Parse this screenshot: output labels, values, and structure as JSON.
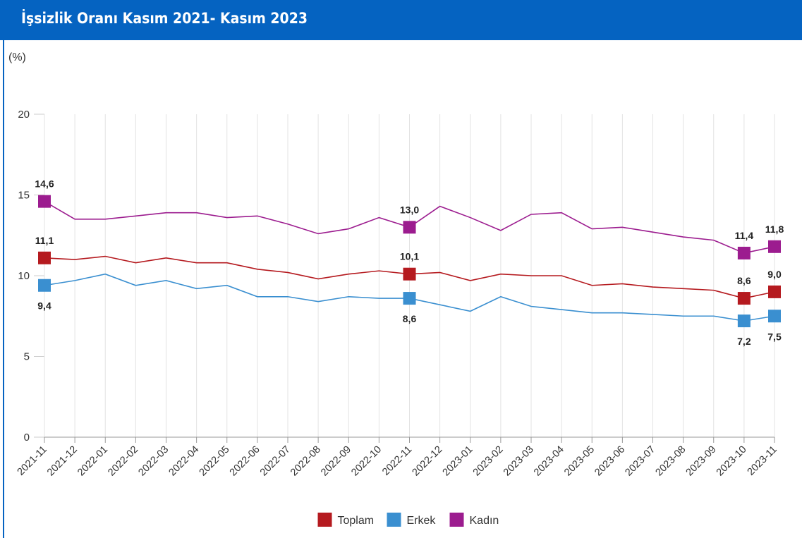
{
  "chart_data": {
    "type": "line",
    "title": "İşsizlik Oranı Kasım 2021- Kasım 2023",
    "y_label": "(%)",
    "categories": [
      "2021-11",
      "2021-12",
      "2022-01",
      "2022-02",
      "2022-03",
      "2022-04",
      "2022-05",
      "2022-06",
      "2022-07",
      "2022-08",
      "2022-09",
      "2022-10",
      "2022-11",
      "2022-12",
      "2023-01",
      "2023-02",
      "2023-03",
      "2023-04",
      "2023-05",
      "2023-06",
      "2023-07",
      "2023-08",
      "2023-09",
      "2023-10",
      "2023-11"
    ],
    "series": [
      {
        "name": "Toplam",
        "color": "#b51a1f",
        "values": [
          11.1,
          11.0,
          11.2,
          10.8,
          11.1,
          10.8,
          10.8,
          10.4,
          10.2,
          9.8,
          10.1,
          10.3,
          10.1,
          10.2,
          9.7,
          10.1,
          10.0,
          10.0,
          9.4,
          9.5,
          9.3,
          9.2,
          9.1,
          8.6,
          9.0
        ],
        "value_labels": [
          "11,1",
          null,
          null,
          null,
          null,
          null,
          null,
          null,
          null,
          null,
          null,
          null,
          "10,1",
          null,
          null,
          null,
          null,
          null,
          null,
          null,
          null,
          null,
          null,
          "8,6",
          "9,0"
        ]
      },
      {
        "name": "Erkek",
        "color": "#3a8fd0",
        "values": [
          9.4,
          9.7,
          10.1,
          9.4,
          9.7,
          9.2,
          9.4,
          8.7,
          8.7,
          8.4,
          8.7,
          8.6,
          8.6,
          8.2,
          7.8,
          8.7,
          8.1,
          7.9,
          7.7,
          7.7,
          7.6,
          7.5,
          7.5,
          7.2,
          7.5
        ],
        "value_labels": [
          "9,4",
          null,
          null,
          null,
          null,
          null,
          null,
          null,
          null,
          null,
          null,
          null,
          "8,6",
          null,
          null,
          null,
          null,
          null,
          null,
          null,
          null,
          null,
          null,
          "7,2",
          "7,5"
        ]
      },
      {
        "name": "Kadın",
        "color": "#9c1c8f",
        "values": [
          14.6,
          13.5,
          13.5,
          13.7,
          13.9,
          13.9,
          13.6,
          13.7,
          13.2,
          12.6,
          12.9,
          13.6,
          13.0,
          14.3,
          13.6,
          12.8,
          13.8,
          13.9,
          12.9,
          13.0,
          12.7,
          12.4,
          12.2,
          11.4,
          11.8
        ],
        "value_labels": [
          "14,6",
          null,
          null,
          null,
          null,
          null,
          null,
          null,
          null,
          null,
          null,
          null,
          "13,0",
          null,
          null,
          null,
          null,
          null,
          null,
          null,
          null,
          null,
          null,
          "11,4",
          "11,8"
        ]
      }
    ],
    "ylim": [
      0,
      20
    ],
    "yticks": [
      0,
      5,
      10,
      15,
      20
    ],
    "grid": true,
    "legend": "bottom"
  }
}
